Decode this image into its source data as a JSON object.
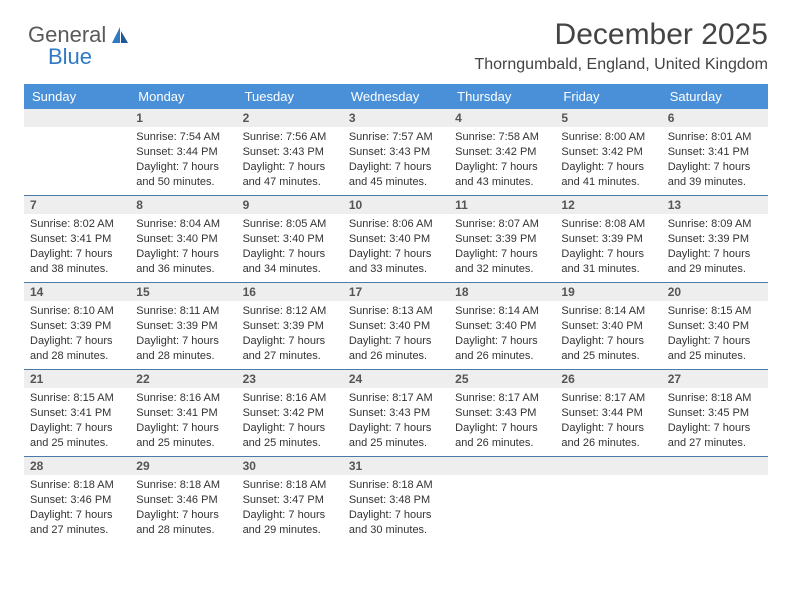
{
  "logo": {
    "part1": "General",
    "part2": "Blue"
  },
  "title": "December 2025",
  "location": "Thorngumbald, England, United Kingdom",
  "colors": {
    "header_bg": "#4a90d9",
    "header_fg": "#ffffff",
    "num_bg": "#eeeeee",
    "row_border": "#4a7aa8",
    "logo_gray": "#5a5a5a",
    "logo_blue": "#2f7ac4"
  },
  "fonts": {
    "title_size": 30,
    "location_size": 16,
    "dayheader_size": 13,
    "daynum_size": 12,
    "body_size": 11
  },
  "day_names": [
    "Sunday",
    "Monday",
    "Tuesday",
    "Wednesday",
    "Thursday",
    "Friday",
    "Saturday"
  ],
  "weeks": [
    [
      null,
      {
        "n": "1",
        "sr": "Sunrise: 7:54 AM",
        "ss": "Sunset: 3:44 PM",
        "d1": "Daylight: 7 hours",
        "d2": "and 50 minutes."
      },
      {
        "n": "2",
        "sr": "Sunrise: 7:56 AM",
        "ss": "Sunset: 3:43 PM",
        "d1": "Daylight: 7 hours",
        "d2": "and 47 minutes."
      },
      {
        "n": "3",
        "sr": "Sunrise: 7:57 AM",
        "ss": "Sunset: 3:43 PM",
        "d1": "Daylight: 7 hours",
        "d2": "and 45 minutes."
      },
      {
        "n": "4",
        "sr": "Sunrise: 7:58 AM",
        "ss": "Sunset: 3:42 PM",
        "d1": "Daylight: 7 hours",
        "d2": "and 43 minutes."
      },
      {
        "n": "5",
        "sr": "Sunrise: 8:00 AM",
        "ss": "Sunset: 3:42 PM",
        "d1": "Daylight: 7 hours",
        "d2": "and 41 minutes."
      },
      {
        "n": "6",
        "sr": "Sunrise: 8:01 AM",
        "ss": "Sunset: 3:41 PM",
        "d1": "Daylight: 7 hours",
        "d2": "and 39 minutes."
      }
    ],
    [
      {
        "n": "7",
        "sr": "Sunrise: 8:02 AM",
        "ss": "Sunset: 3:41 PM",
        "d1": "Daylight: 7 hours",
        "d2": "and 38 minutes."
      },
      {
        "n": "8",
        "sr": "Sunrise: 8:04 AM",
        "ss": "Sunset: 3:40 PM",
        "d1": "Daylight: 7 hours",
        "d2": "and 36 minutes."
      },
      {
        "n": "9",
        "sr": "Sunrise: 8:05 AM",
        "ss": "Sunset: 3:40 PM",
        "d1": "Daylight: 7 hours",
        "d2": "and 34 minutes."
      },
      {
        "n": "10",
        "sr": "Sunrise: 8:06 AM",
        "ss": "Sunset: 3:40 PM",
        "d1": "Daylight: 7 hours",
        "d2": "and 33 minutes."
      },
      {
        "n": "11",
        "sr": "Sunrise: 8:07 AM",
        "ss": "Sunset: 3:39 PM",
        "d1": "Daylight: 7 hours",
        "d2": "and 32 minutes."
      },
      {
        "n": "12",
        "sr": "Sunrise: 8:08 AM",
        "ss": "Sunset: 3:39 PM",
        "d1": "Daylight: 7 hours",
        "d2": "and 31 minutes."
      },
      {
        "n": "13",
        "sr": "Sunrise: 8:09 AM",
        "ss": "Sunset: 3:39 PM",
        "d1": "Daylight: 7 hours",
        "d2": "and 29 minutes."
      }
    ],
    [
      {
        "n": "14",
        "sr": "Sunrise: 8:10 AM",
        "ss": "Sunset: 3:39 PM",
        "d1": "Daylight: 7 hours",
        "d2": "and 28 minutes."
      },
      {
        "n": "15",
        "sr": "Sunrise: 8:11 AM",
        "ss": "Sunset: 3:39 PM",
        "d1": "Daylight: 7 hours",
        "d2": "and 28 minutes."
      },
      {
        "n": "16",
        "sr": "Sunrise: 8:12 AM",
        "ss": "Sunset: 3:39 PM",
        "d1": "Daylight: 7 hours",
        "d2": "and 27 minutes."
      },
      {
        "n": "17",
        "sr": "Sunrise: 8:13 AM",
        "ss": "Sunset: 3:40 PM",
        "d1": "Daylight: 7 hours",
        "d2": "and 26 minutes."
      },
      {
        "n": "18",
        "sr": "Sunrise: 8:14 AM",
        "ss": "Sunset: 3:40 PM",
        "d1": "Daylight: 7 hours",
        "d2": "and 26 minutes."
      },
      {
        "n": "19",
        "sr": "Sunrise: 8:14 AM",
        "ss": "Sunset: 3:40 PM",
        "d1": "Daylight: 7 hours",
        "d2": "and 25 minutes."
      },
      {
        "n": "20",
        "sr": "Sunrise: 8:15 AM",
        "ss": "Sunset: 3:40 PM",
        "d1": "Daylight: 7 hours",
        "d2": "and 25 minutes."
      }
    ],
    [
      {
        "n": "21",
        "sr": "Sunrise: 8:15 AM",
        "ss": "Sunset: 3:41 PM",
        "d1": "Daylight: 7 hours",
        "d2": "and 25 minutes."
      },
      {
        "n": "22",
        "sr": "Sunrise: 8:16 AM",
        "ss": "Sunset: 3:41 PM",
        "d1": "Daylight: 7 hours",
        "d2": "and 25 minutes."
      },
      {
        "n": "23",
        "sr": "Sunrise: 8:16 AM",
        "ss": "Sunset: 3:42 PM",
        "d1": "Daylight: 7 hours",
        "d2": "and 25 minutes."
      },
      {
        "n": "24",
        "sr": "Sunrise: 8:17 AM",
        "ss": "Sunset: 3:43 PM",
        "d1": "Daylight: 7 hours",
        "d2": "and 25 minutes."
      },
      {
        "n": "25",
        "sr": "Sunrise: 8:17 AM",
        "ss": "Sunset: 3:43 PM",
        "d1": "Daylight: 7 hours",
        "d2": "and 26 minutes."
      },
      {
        "n": "26",
        "sr": "Sunrise: 8:17 AM",
        "ss": "Sunset: 3:44 PM",
        "d1": "Daylight: 7 hours",
        "d2": "and 26 minutes."
      },
      {
        "n": "27",
        "sr": "Sunrise: 8:18 AM",
        "ss": "Sunset: 3:45 PM",
        "d1": "Daylight: 7 hours",
        "d2": "and 27 minutes."
      }
    ],
    [
      {
        "n": "28",
        "sr": "Sunrise: 8:18 AM",
        "ss": "Sunset: 3:46 PM",
        "d1": "Daylight: 7 hours",
        "d2": "and 27 minutes."
      },
      {
        "n": "29",
        "sr": "Sunrise: 8:18 AM",
        "ss": "Sunset: 3:46 PM",
        "d1": "Daylight: 7 hours",
        "d2": "and 28 minutes."
      },
      {
        "n": "30",
        "sr": "Sunrise: 8:18 AM",
        "ss": "Sunset: 3:47 PM",
        "d1": "Daylight: 7 hours",
        "d2": "and 29 minutes."
      },
      {
        "n": "31",
        "sr": "Sunrise: 8:18 AM",
        "ss": "Sunset: 3:48 PM",
        "d1": "Daylight: 7 hours",
        "d2": "and 30 minutes."
      },
      null,
      null,
      null
    ]
  ]
}
